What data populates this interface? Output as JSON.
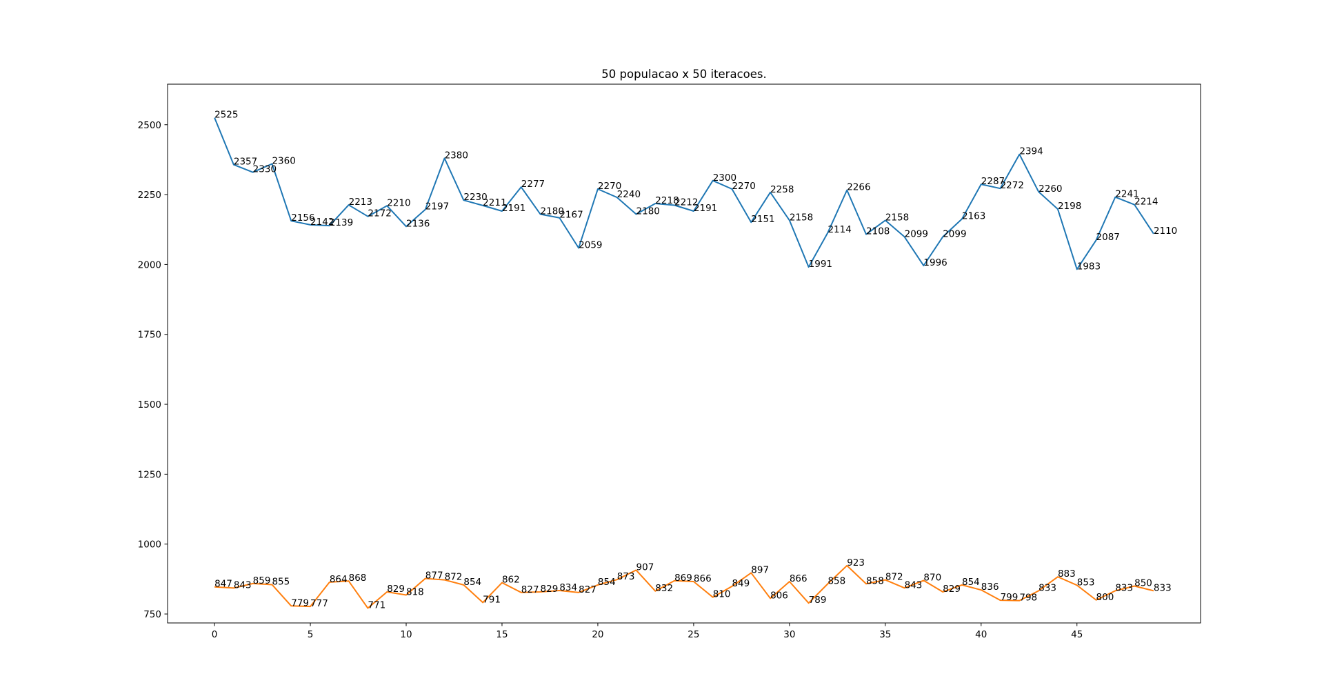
{
  "chart_data": {
    "type": "line",
    "title": "50 populacao x 50 iteracoes.",
    "xlabel": "",
    "ylabel": "",
    "xlim": [
      -2.45,
      51.45
    ],
    "ylim": [
      718,
      2645
    ],
    "x_ticks": [
      0,
      5,
      10,
      15,
      20,
      25,
      30,
      35,
      40,
      45
    ],
    "y_ticks": [
      750,
      1000,
      1250,
      1500,
      1750,
      2000,
      2250,
      2500
    ],
    "grid": false,
    "legend": "none",
    "x": [
      0,
      1,
      2,
      3,
      4,
      5,
      6,
      7,
      8,
      9,
      10,
      11,
      12,
      13,
      14,
      15,
      16,
      17,
      18,
      19,
      20,
      21,
      22,
      23,
      24,
      25,
      26,
      27,
      28,
      29,
      30,
      31,
      32,
      33,
      34,
      35,
      36,
      37,
      38,
      39,
      40,
      41,
      42,
      43,
      44,
      45,
      46,
      47,
      48,
      49
    ],
    "series": [
      {
        "color": "#1f77b4",
        "values": [
          2525,
          2357,
          2330,
          2360,
          2156,
          2142,
          2139,
          2213,
          2172,
          2210,
          2136,
          2197,
          2380,
          2230,
          2211,
          2191,
          2277,
          2180,
          2167,
          2059,
          2270,
          2240,
          2180,
          2218,
          2212,
          2191,
          2300,
          2270,
          2151,
          2258,
          2158,
          1991,
          2114,
          2266,
          2108,
          2158,
          2099,
          1996,
          2099,
          2163,
          2287,
          2272,
          2394,
          2260,
          2198,
          1983,
          2087,
          2241,
          2214,
          2110
        ]
      },
      {
        "color": "#ff7f0e",
        "values": [
          847,
          843,
          859,
          855,
          779,
          777,
          864,
          868,
          771,
          829,
          818,
          877,
          872,
          854,
          791,
          862,
          827,
          829,
          834,
          827,
          854,
          873,
          907,
          832,
          869,
          866,
          810,
          849,
          897,
          806,
          866,
          789,
          858,
          923,
          858,
          872,
          843,
          870,
          829,
          854,
          836,
          799,
          798,
          833,
          883,
          853,
          800,
          833,
          850,
          833
        ]
      }
    ]
  }
}
